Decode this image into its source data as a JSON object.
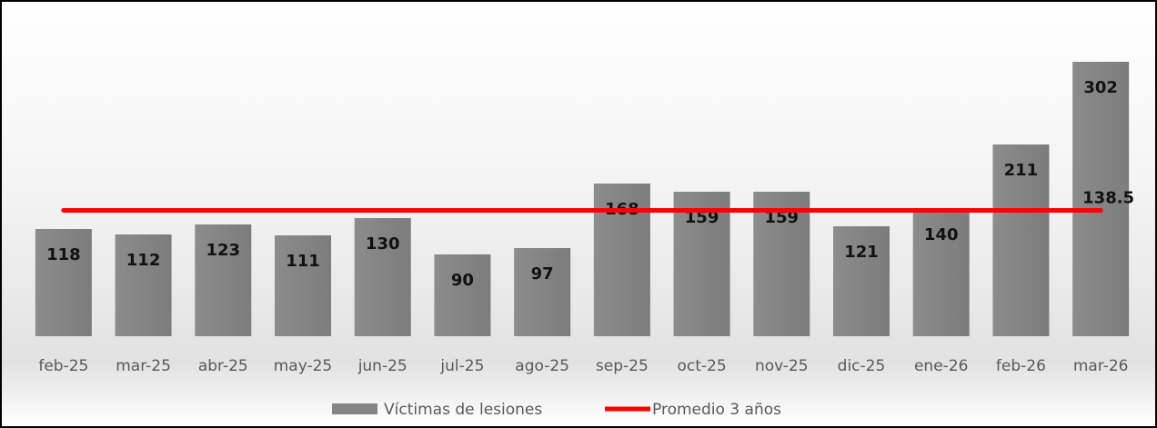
{
  "chart_data": {
    "type": "bar",
    "categories": [
      "feb-25",
      "mar-25",
      "abr-25",
      "may-25",
      "jun-25",
      "jul-25",
      "ago-25",
      "sep-25",
      "oct-25",
      "nov-25",
      "dic-25",
      "ene-26",
      "feb-26",
      "mar-26"
    ],
    "series": [
      {
        "name": "Víctimas de lesiones",
        "type": "bar",
        "color": "#858585",
        "values": [
          118,
          112,
          123,
          111,
          130,
          90,
          97,
          168,
          159,
          159,
          121,
          140,
          211,
          302
        ]
      },
      {
        "name": "Promedio 3 años",
        "type": "line",
        "color": "#ff0000",
        "values": [
          138.5,
          138.5,
          138.5,
          138.5,
          138.5,
          138.5,
          138.5,
          138.5,
          138.5,
          138.5,
          138.5,
          138.5,
          138.5,
          138.5
        ]
      }
    ],
    "ylim": [
      0,
      350
    ]
  }
}
